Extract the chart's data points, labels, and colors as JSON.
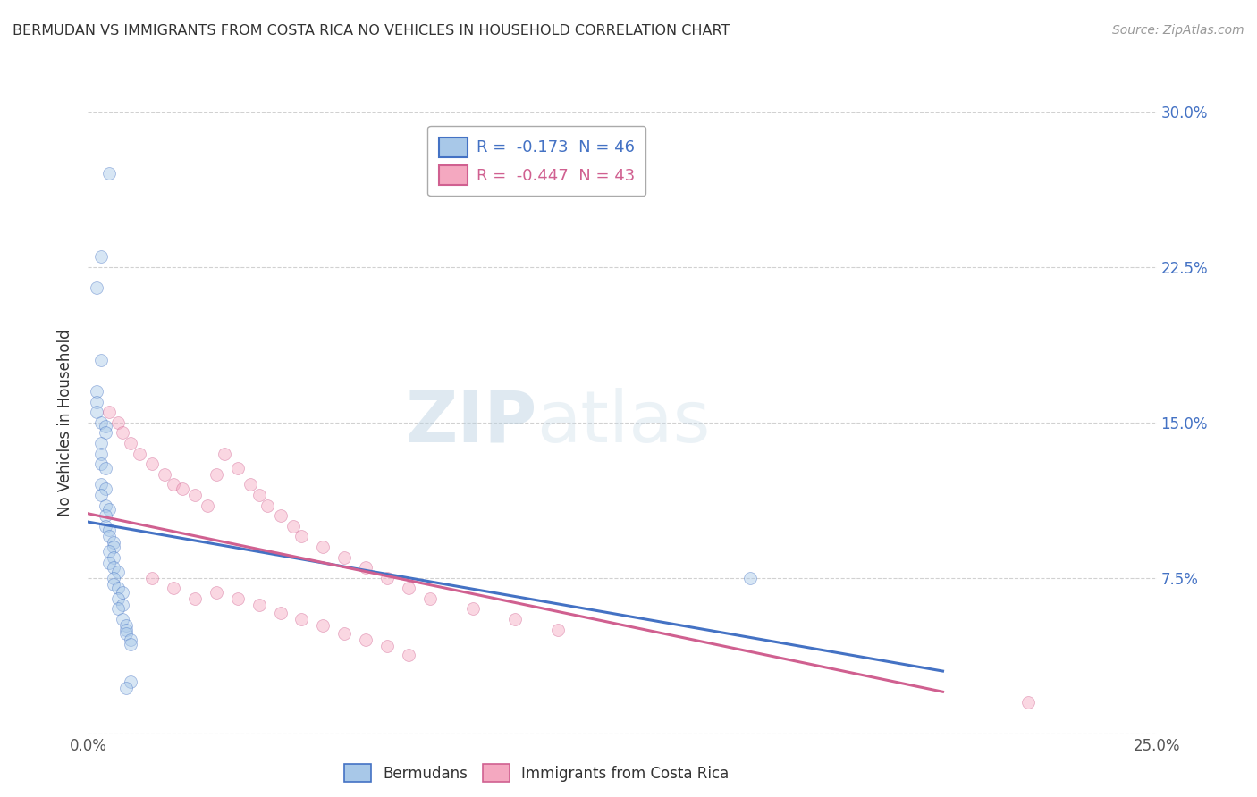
{
  "title": "BERMUDAN VS IMMIGRANTS FROM COSTA RICA NO VEHICLES IN HOUSEHOLD CORRELATION CHART",
  "source": "Source: ZipAtlas.com",
  "ylabel": "No Vehicles in Household",
  "xlim": [
    0.0,
    0.25
  ],
  "ylim": [
    0.0,
    0.3
  ],
  "xticks": [
    0.0,
    0.05,
    0.1,
    0.15,
    0.2,
    0.25
  ],
  "yticks": [
    0.0,
    0.075,
    0.15,
    0.225,
    0.3
  ],
  "xticklabels": [
    "0.0%",
    "",
    "",
    "",
    "",
    "25.0%"
  ],
  "yticklabels_right": [
    "",
    "7.5%",
    "15.0%",
    "22.5%",
    "30.0%"
  ],
  "color_blue": "#a8c8e8",
  "color_pink": "#f4a8c0",
  "line_blue": "#4472c4",
  "line_pink": "#d06090",
  "blue_scatter_x": [
    0.005,
    0.003,
    0.002,
    0.003,
    0.002,
    0.002,
    0.002,
    0.003,
    0.004,
    0.004,
    0.003,
    0.003,
    0.003,
    0.004,
    0.003,
    0.004,
    0.003,
    0.004,
    0.005,
    0.004,
    0.004,
    0.005,
    0.005,
    0.006,
    0.006,
    0.005,
    0.006,
    0.005,
    0.006,
    0.007,
    0.006,
    0.006,
    0.007,
    0.008,
    0.007,
    0.008,
    0.007,
    0.008,
    0.009,
    0.009,
    0.009,
    0.01,
    0.01,
    0.155,
    0.01,
    0.009
  ],
  "blue_scatter_y": [
    0.27,
    0.23,
    0.215,
    0.18,
    0.165,
    0.16,
    0.155,
    0.15,
    0.148,
    0.145,
    0.14,
    0.135,
    0.13,
    0.128,
    0.12,
    0.118,
    0.115,
    0.11,
    0.108,
    0.105,
    0.1,
    0.098,
    0.095,
    0.092,
    0.09,
    0.088,
    0.085,
    0.082,
    0.08,
    0.078,
    0.075,
    0.072,
    0.07,
    0.068,
    0.065,
    0.062,
    0.06,
    0.055,
    0.052,
    0.05,
    0.048,
    0.045,
    0.043,
    0.075,
    0.025,
    0.022
  ],
  "pink_scatter_x": [
    0.005,
    0.007,
    0.008,
    0.01,
    0.012,
    0.015,
    0.018,
    0.02,
    0.022,
    0.025,
    0.028,
    0.03,
    0.032,
    0.035,
    0.038,
    0.04,
    0.042,
    0.045,
    0.048,
    0.05,
    0.055,
    0.06,
    0.065,
    0.07,
    0.075,
    0.08,
    0.09,
    0.1,
    0.11,
    0.03,
    0.035,
    0.04,
    0.045,
    0.05,
    0.055,
    0.06,
    0.065,
    0.07,
    0.075,
    0.22,
    0.015,
    0.02,
    0.025
  ],
  "pink_scatter_y": [
    0.155,
    0.15,
    0.145,
    0.14,
    0.135,
    0.13,
    0.125,
    0.12,
    0.118,
    0.115,
    0.11,
    0.125,
    0.135,
    0.128,
    0.12,
    0.115,
    0.11,
    0.105,
    0.1,
    0.095,
    0.09,
    0.085,
    0.08,
    0.075,
    0.07,
    0.065,
    0.06,
    0.055,
    0.05,
    0.068,
    0.065,
    0.062,
    0.058,
    0.055,
    0.052,
    0.048,
    0.045,
    0.042,
    0.038,
    0.015,
    0.075,
    0.07,
    0.065
  ],
  "blue_line_x": [
    0.0,
    0.2
  ],
  "blue_line_y": [
    0.102,
    0.03
  ],
  "pink_line_x": [
    0.0,
    0.2
  ],
  "pink_line_y": [
    0.106,
    0.02
  ],
  "marker_size": 100,
  "marker_alpha": 0.45
}
